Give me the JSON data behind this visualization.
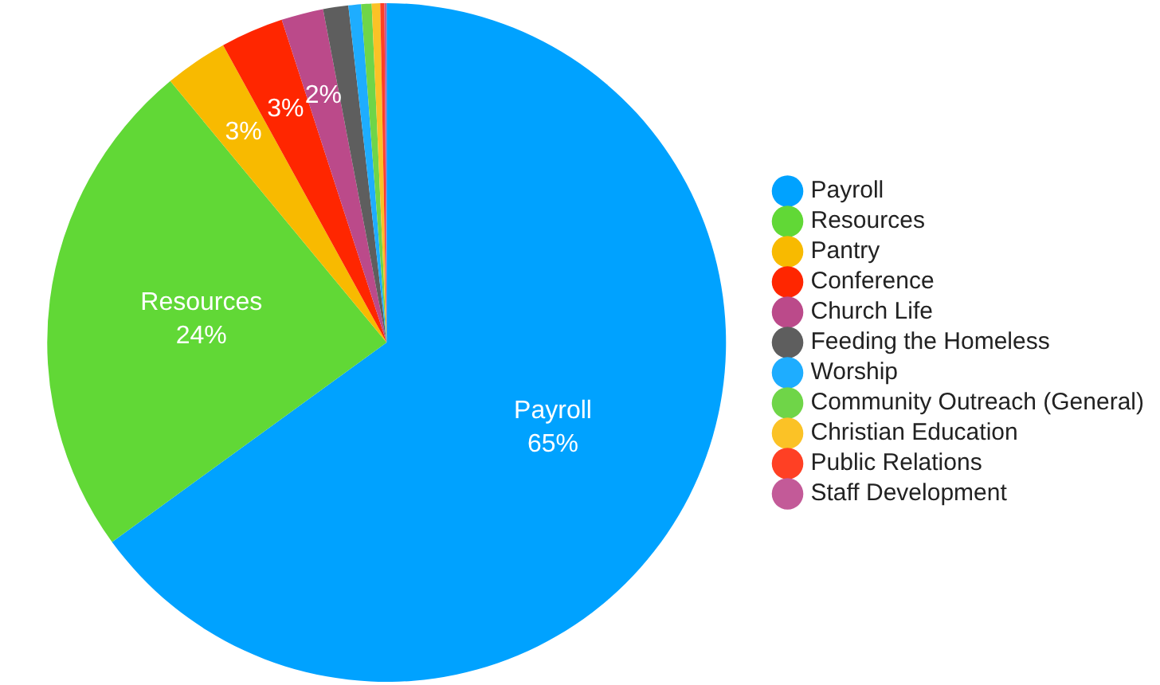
{
  "chart_data": {
    "type": "pie",
    "categories": [
      "Payroll",
      "Resources",
      "Pantry",
      "Conference",
      "Church Life",
      "Feeding the Homeless",
      "Worship",
      "Community Outreach (General)",
      "Christian Education",
      "Public Relations",
      "Staff Development"
    ],
    "values": [
      65,
      24,
      3,
      3,
      2,
      1.2,
      0.6,
      0.5,
      0.4,
      0.2,
      0.1
    ],
    "colors": [
      "#00a2ff",
      "#61d836",
      "#f8ba00",
      "#ff2600",
      "#bb4a8a",
      "#5e5e5e",
      "#1eadff",
      "#6fd548",
      "#fbc226",
      "#ff4024",
      "#c35a98"
    ],
    "value_labels": [
      "65%",
      "24%",
      "3%",
      "3%",
      "2%",
      null,
      null,
      null,
      null,
      null,
      null
    ],
    "legend": "right"
  }
}
